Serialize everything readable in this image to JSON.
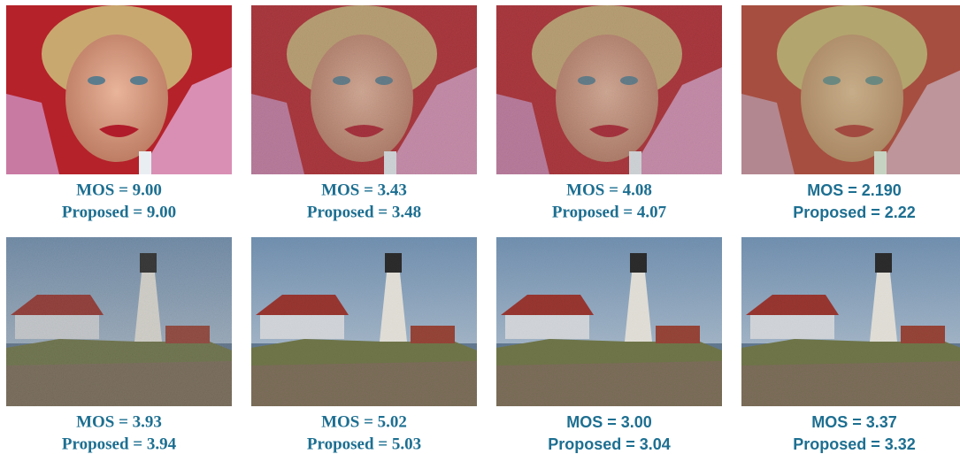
{
  "figure": {
    "rows": [
      [
        {
          "mos": "MOS = 9.00",
          "proposed": "Proposed = 9.00"
        },
        {
          "mos": "MOS = 3.43",
          "proposed": "Proposed = 3.48"
        },
        {
          "mos": "MOS = 4.08",
          "proposed": "Proposed = 4.07"
        },
        {
          "mos": "MOS = 2.190",
          "proposed": "Proposed = 2.22"
        }
      ],
      [
        {
          "mos": "MOS = 3.93",
          "proposed": "Proposed = 3.94"
        },
        {
          "mos": "MOS = 5.02",
          "proposed": "Proposed = 5.03"
        },
        {
          "mos": "MOS = 3.00",
          "proposed": "Proposed = 3.04"
        },
        {
          "mos": "MOS = 3.37",
          "proposed": "Proposed = 3.32"
        }
      ]
    ]
  }
}
